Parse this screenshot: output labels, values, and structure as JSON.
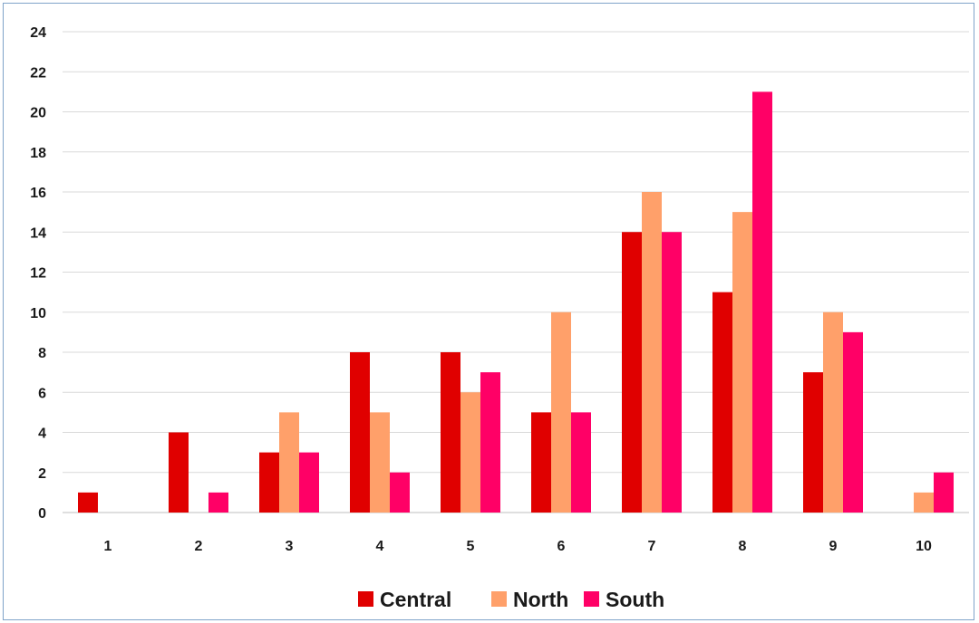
{
  "chart_data": {
    "type": "bar",
    "categories": [
      "1",
      "2",
      "3",
      "4",
      "5",
      "6",
      "7",
      "8",
      "9",
      "10"
    ],
    "series": [
      {
        "name": "Central",
        "color": "#e00000",
        "values": [
          1,
          4,
          3,
          8,
          8,
          5,
          14,
          11,
          7,
          0
        ]
      },
      {
        "name": "North",
        "color": "#ffa06a",
        "values": [
          0,
          0,
          5,
          5,
          6,
          10,
          16,
          15,
          10,
          1
        ]
      },
      {
        "name": "South",
        "color": "#ff0066",
        "values": [
          0,
          1,
          3,
          2,
          7,
          5,
          14,
          21,
          9,
          2
        ]
      }
    ],
    "yticks": [
      0,
      2,
      4,
      6,
      8,
      10,
      12,
      14,
      16,
      18,
      20,
      22,
      24
    ],
    "ylim": [
      0,
      24
    ],
    "grid": true,
    "legend_position": "bottom-center",
    "title": "",
    "xlabel": "",
    "ylabel": ""
  }
}
